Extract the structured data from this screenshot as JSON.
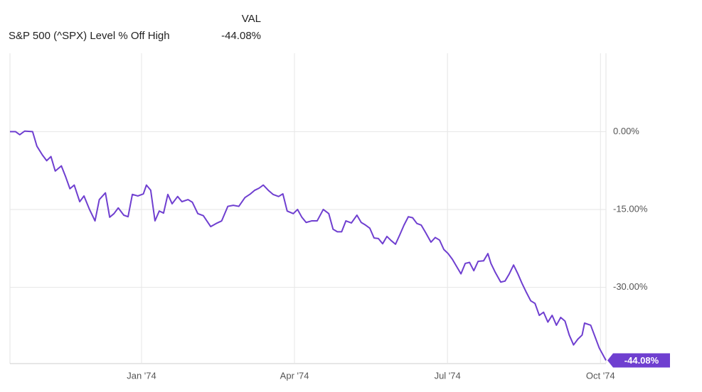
{
  "chart_data": {
    "type": "line",
    "legend_header": "VAL",
    "x": [
      1973.785,
      1973.794,
      1973.801,
      1973.809,
      1973.822,
      1973.829,
      1973.838,
      1973.845,
      1973.852,
      1973.859,
      1973.869,
      1973.876,
      1973.883,
      1973.89,
      1973.899,
      1973.906,
      1973.915,
      1973.924,
      1973.931,
      1973.941,
      1973.948,
      1973.955,
      1973.962,
      1973.971,
      1973.978,
      1973.985,
      1973.994,
      1974.003,
      1974.008,
      1974.015,
      1974.022,
      1974.029,
      1974.036,
      1974.043,
      1974.05,
      1974.059,
      1974.066,
      1974.076,
      1974.083,
      1974.092,
      1974.101,
      1974.113,
      1974.122,
      1974.131,
      1974.141,
      1974.15,
      1974.159,
      1974.169,
      1974.178,
      1974.185,
      1974.192,
      1974.199,
      1974.208,
      1974.215,
      1974.224,
      1974.231,
      1974.238,
      1974.248,
      1974.255,
      1974.262,
      1974.269,
      1974.278,
      1974.287,
      1974.297,
      1974.306,
      1974.313,
      1974.32,
      1974.327,
      1974.334,
      1974.343,
      1974.352,
      1974.359,
      1974.366,
      1974.373,
      1974.38,
      1974.387,
      1974.394,
      1974.401,
      1974.408,
      1974.415,
      1974.422,
      1974.429,
      1974.436,
      1974.443,
      1974.45,
      1974.457,
      1974.464,
      1974.473,
      1974.48,
      1974.487,
      1974.494,
      1974.501,
      1974.508,
      1974.515,
      1974.522,
      1974.529,
      1974.536,
      1974.543,
      1974.55,
      1974.559,
      1974.566,
      1974.571,
      1974.578,
      1974.587,
      1974.594,
      1974.601,
      1974.608,
      1974.615,
      1974.622,
      1974.629,
      1974.636,
      1974.643,
      1974.65,
      1974.657,
      1974.664,
      1974.671,
      1974.678,
      1974.685,
      1974.692,
      1974.699,
      1974.706,
      1974.713,
      1974.72,
      1974.724,
      1974.734,
      1974.741,
      1974.748,
      1974.759
    ],
    "series": [
      {
        "name": "S&P 500 (^SPX) Level % Off High",
        "color": "#6f3fd0",
        "last_value_label": "-44.08%",
        "values": [
          0,
          0,
          -0.6,
          0.1,
          0,
          -2.8,
          -4.5,
          -5.6,
          -4.8,
          -7.6,
          -6.6,
          -8.7,
          -11,
          -10.3,
          -13.5,
          -12.4,
          -15,
          -17.2,
          -13.1,
          -11.8,
          -16.5,
          -15.8,
          -14.7,
          -16.1,
          -16.4,
          -12.1,
          -12.4,
          -12,
          -10.3,
          -11.3,
          -17.2,
          -15.3,
          -15.7,
          -12.1,
          -13.9,
          -12.5,
          -13.5,
          -13.1,
          -13.6,
          -15.8,
          -16.2,
          -18.3,
          -17.7,
          -17.2,
          -14.4,
          -14.2,
          -14.4,
          -12.7,
          -12,
          -11.3,
          -10.9,
          -10.3,
          -11.4,
          -12.1,
          -12.5,
          -12,
          -15.3,
          -15.8,
          -15,
          -16.5,
          -17.5,
          -17.2,
          -17.2,
          -15,
          -15.8,
          -18.8,
          -19.3,
          -19.3,
          -17.2,
          -17.6,
          -16.1,
          -17.5,
          -18,
          -18.6,
          -20.5,
          -20.6,
          -21.6,
          -20.2,
          -21,
          -21.7,
          -19.9,
          -18,
          -16.4,
          -16.6,
          -17.7,
          -18,
          -19.4,
          -21.3,
          -20.4,
          -20.9,
          -22.7,
          -23.5,
          -24.6,
          -26,
          -27.4,
          -25.4,
          -25.2,
          -26.8,
          -25,
          -24.9,
          -23.5,
          -25.4,
          -27.1,
          -29,
          -28.8,
          -27.4,
          -25.7,
          -27.4,
          -29.3,
          -31,
          -32.6,
          -33.1,
          -35.4,
          -34.8,
          -36.7,
          -35.4,
          -37.3,
          -35.8,
          -36.5,
          -39.2,
          -41.1,
          -40,
          -39.2,
          -36.9,
          -37.3,
          -39.5,
          -41.7,
          -44.08
        ]
      }
    ],
    "xlim": [
      1973.785,
      1974.759
    ],
    "xticks": [
      {
        "value": 1974.0,
        "label": "Jan '74"
      },
      {
        "value": 1974.25,
        "label": "Apr '74"
      },
      {
        "value": 1974.5,
        "label": "Jul '74"
      },
      {
        "value": 1974.75,
        "label": "Oct '74"
      }
    ],
    "ylim": [
      -44.7,
      15.1
    ],
    "yticks": [
      {
        "value": 0,
        "label": "0.00%"
      },
      {
        "value": -15,
        "label": "-15.00%"
      },
      {
        "value": -30,
        "label": "-30.00%"
      }
    ],
    "grid": true
  }
}
